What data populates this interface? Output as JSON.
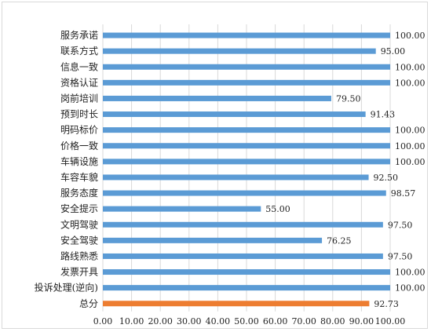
{
  "chart_data": {
    "type": "bar",
    "orientation": "horizontal",
    "categories": [
      "服务承诺",
      "联系方式",
      "信息一致",
      "资格认证",
      "岗前培训",
      "预到时长",
      "明码标价",
      "价格一致",
      "车辆设施",
      "车容车貌",
      "服务态度",
      "安全提示",
      "文明驾驶",
      "安全驾驶",
      "路线熟悉",
      "发票开具",
      "投诉处理(逆向)",
      "总分"
    ],
    "values": [
      100.0,
      95.0,
      100.0,
      100.0,
      79.5,
      91.43,
      100.0,
      100.0,
      100.0,
      92.5,
      98.57,
      55.0,
      97.5,
      76.25,
      97.5,
      100.0,
      100.0,
      92.73
    ],
    "value_labels": [
      "100.00",
      "95.00",
      "100.00",
      "100.00",
      "79.50",
      "91.43",
      "100.00",
      "100.00",
      "100.00",
      "92.50",
      "98.57",
      "55.00",
      "97.50",
      "76.25",
      "97.50",
      "100.00",
      "100.00",
      "92.73"
    ],
    "xlim": [
      0,
      100
    ],
    "x_ticks": [
      "0.00",
      "10.00",
      "20.00",
      "30.00",
      "40.00",
      "50.00",
      "60.00",
      "70.00",
      "80.00",
      "90.00",
      "100.00"
    ],
    "grid": true,
    "legend": "none",
    "colors": {
      "bar": "#5b9bd5",
      "highlight": "#ed7d31"
    },
    "highlight_index": 17
  }
}
